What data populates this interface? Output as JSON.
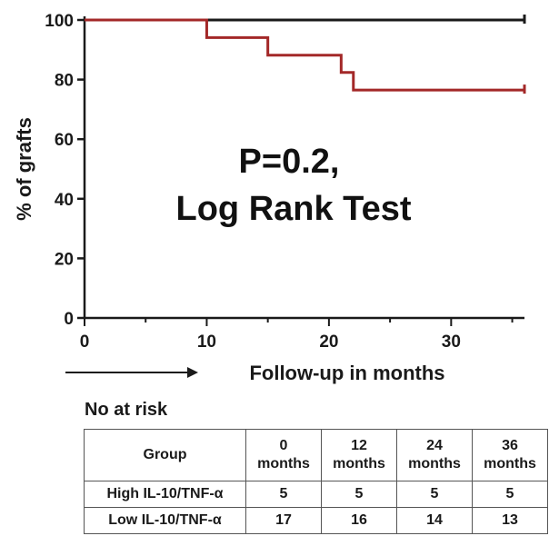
{
  "chart_data": {
    "type": "line",
    "xlabel": "Follow-up in months",
    "ylabel": "% of grafts",
    "xlim": [
      0,
      36
    ],
    "ylim": [
      0,
      100
    ],
    "xticks": [
      0,
      10,
      20,
      30
    ],
    "yticks": [
      0,
      20,
      40,
      60,
      80,
      100
    ],
    "annotation": [
      "P=0.2,",
      "Log Rank Test"
    ],
    "series": [
      {
        "color": "#1a1a1a",
        "step": true,
        "x": [
          0,
          36
        ],
        "y": [
          100,
          100
        ]
      },
      {
        "color": "#a32828",
        "step": true,
        "x": [
          0,
          10,
          15,
          21,
          22,
          36
        ],
        "y": [
          100,
          94.1,
          88.2,
          82.4,
          76.5,
          76.5
        ]
      }
    ]
  },
  "risk_table": {
    "title": "No at risk",
    "group_header": "Group",
    "times": [
      {
        "value": "0",
        "unit": "months"
      },
      {
        "value": "12",
        "unit": "months"
      },
      {
        "value": "24",
        "unit": "months"
      },
      {
        "value": "36",
        "unit": "months"
      }
    ],
    "rows": [
      {
        "label": "High IL-10/TNF-α",
        "values": [
          "5",
          "5",
          "5",
          "5"
        ]
      },
      {
        "label": "Low IL-10/TNF-α",
        "values": [
          "17",
          "16",
          "14",
          "13"
        ]
      }
    ]
  }
}
